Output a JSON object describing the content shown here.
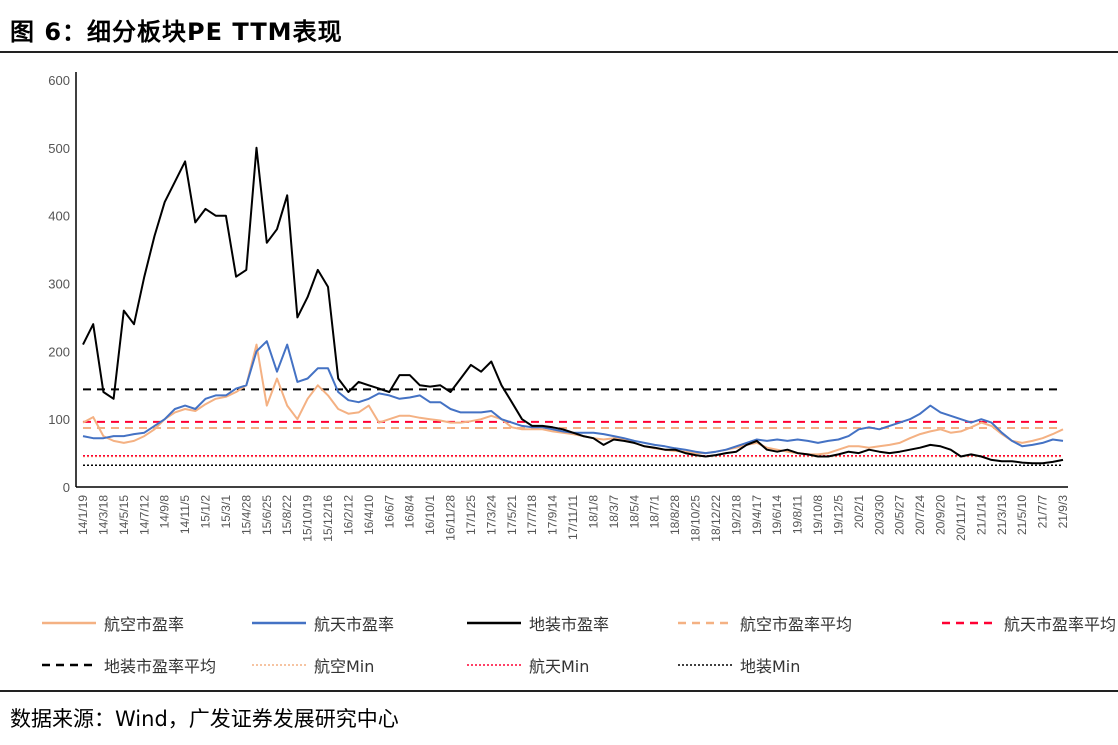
{
  "title": "图 6：细分板块PE TTM表现",
  "source": "数据来源：Wind，广发证券发展研究中心",
  "chart_data": {
    "type": "line",
    "title": "",
    "xlabel": "",
    "ylabel": "",
    "ylim": [
      0,
      600
    ],
    "yticks": [
      "0",
      "100",
      "200",
      "300",
      "400",
      "500",
      "600"
    ],
    "grid": false,
    "legend_position": "bottom",
    "xtick_labels": [
      "14/1/19",
      "14/3/18",
      "14/5/15",
      "14/7/12",
      "14/9/8",
      "14/11/5",
      "15/1/2",
      "15/3/1",
      "15/4/28",
      "15/6/25",
      "15/8/22",
      "15/10/19",
      "15/12/16",
      "16/2/12",
      "16/4/10",
      "16/6/7",
      "16/8/4",
      "16/10/1",
      "16/11/28",
      "17/1/25",
      "17/3/24",
      "17/5/21",
      "17/7/18",
      "17/9/14",
      "17/11/11",
      "18/1/8",
      "18/3/7",
      "18/5/4",
      "18/7/1",
      "18/8/28",
      "18/10/25",
      "18/12/22",
      "19/2/18",
      "19/4/17",
      "19/6/14",
      "19/8/11",
      "19/10/8",
      "19/12/5",
      "20/2/1",
      "20/3/30",
      "20/5/27",
      "20/7/24",
      "20/9/20",
      "20/11/17",
      "21/1/14",
      "21/3/13",
      "21/5/10",
      "21/7/7",
      "21/9/3"
    ],
    "x": [
      "14/1/19",
      "14/2/17",
      "14/3/18",
      "14/4/16",
      "14/5/15",
      "14/6/13",
      "14/7/12",
      "14/8/10",
      "14/9/8",
      "14/10/7",
      "14/11/5",
      "14/12/4",
      "15/1/2",
      "15/1/31",
      "15/3/1",
      "15/3/30",
      "15/4/28",
      "15/5/27",
      "15/6/25",
      "15/7/24",
      "15/8/22",
      "15/9/20",
      "15/10/19",
      "15/11/17",
      "15/12/16",
      "16/1/14",
      "16/2/12",
      "16/3/12",
      "16/4/10",
      "16/5/9",
      "16/6/7",
      "16/7/6",
      "16/8/4",
      "16/9/2",
      "16/10/1",
      "16/10/30",
      "16/11/28",
      "16/12/27",
      "17/1/25",
      "17/2/23",
      "17/3/24",
      "17/4/22",
      "17/5/21",
      "17/6/19",
      "17/7/18",
      "17/8/16",
      "17/9/14",
      "17/10/13",
      "17/11/11",
      "17/12/10",
      "18/1/8",
      "18/2/6",
      "18/3/7",
      "18/4/5",
      "18/5/4",
      "18/6/2",
      "18/7/1",
      "18/7/30",
      "18/8/28",
      "18/9/26",
      "18/10/25",
      "18/11/23",
      "18/12/22",
      "19/1/20",
      "19/2/18",
      "19/3/19",
      "19/4/17",
      "19/5/16",
      "19/6/14",
      "19/7/13",
      "19/8/11",
      "19/9/9",
      "19/10/8",
      "19/11/6",
      "19/12/5",
      "20/1/3",
      "20/2/1",
      "20/3/1",
      "20/3/30",
      "20/4/28",
      "20/5/27",
      "20/6/25",
      "20/7/24",
      "20/8/22",
      "20/9/20",
      "20/10/19",
      "20/11/17",
      "20/12/16",
      "21/1/14",
      "21/2/12",
      "21/3/13",
      "21/4/11",
      "21/5/10",
      "21/6/8",
      "21/7/7",
      "21/8/5",
      "21/9/3"
    ],
    "series": [
      {
        "name": "航空市盈率",
        "color": "#F4B183",
        "style": "solid",
        "values": [
          95,
          103,
          75,
          68,
          65,
          68,
          75,
          85,
          100,
          110,
          115,
          112,
          122,
          130,
          133,
          140,
          150,
          210,
          120,
          160,
          120,
          100,
          130,
          150,
          135,
          115,
          108,
          110,
          120,
          95,
          100,
          105,
          105,
          102,
          100,
          98,
          95,
          95,
          97,
          100,
          105,
          100,
          88,
          85,
          85,
          85,
          82,
          80,
          78,
          75,
          72,
          70,
          72,
          70,
          65,
          60,
          57,
          55,
          53,
          52,
          50,
          50,
          52,
          55,
          58,
          62,
          65,
          58,
          55,
          52,
          50,
          48,
          48,
          50,
          55,
          60,
          60,
          58,
          60,
          62,
          65,
          72,
          78,
          82,
          85,
          80,
          82,
          88,
          95,
          90,
          78,
          68,
          65,
          68,
          72,
          78,
          85
        ]
      },
      {
        "name": "航天市盈率",
        "color": "#4472C4",
        "style": "solid",
        "values": [
          75,
          72,
          72,
          75,
          75,
          78,
          80,
          90,
          100,
          115,
          120,
          115,
          130,
          135,
          135,
          145,
          150,
          200,
          215,
          170,
          210,
          155,
          160,
          175,
          175,
          140,
          128,
          125,
          130,
          138,
          135,
          130,
          132,
          135,
          125,
          125,
          115,
          110,
          110,
          110,
          112,
          100,
          95,
          90,
          88,
          88,
          85,
          82,
          80,
          80,
          80,
          78,
          75,
          72,
          68,
          65,
          62,
          60,
          57,
          55,
          52,
          50,
          52,
          55,
          60,
          65,
          70,
          68,
          70,
          68,
          70,
          68,
          65,
          68,
          70,
          75,
          85,
          88,
          85,
          90,
          95,
          100,
          108,
          120,
          110,
          105,
          100,
          95,
          100,
          95,
          80,
          68,
          60,
          62,
          65,
          70,
          68
        ]
      },
      {
        "name": "地装市盈率",
        "color": "#000000",
        "style": "solid",
        "values": [
          210,
          240,
          140,
          130,
          260,
          240,
          310,
          370,
          420,
          450,
          480,
          390,
          410,
          400,
          400,
          310,
          320,
          500,
          360,
          380,
          430,
          250,
          280,
          320,
          295,
          160,
          140,
          155,
          150,
          145,
          140,
          165,
          165,
          150,
          148,
          150,
          140,
          160,
          180,
          170,
          185,
          150,
          125,
          100,
          90,
          90,
          88,
          85,
          80,
          75,
          72,
          62,
          70,
          68,
          65,
          60,
          58,
          55,
          55,
          50,
          47,
          45,
          47,
          50,
          52,
          62,
          68,
          55,
          52,
          55,
          50,
          48,
          45,
          45,
          48,
          52,
          50,
          55,
          52,
          50,
          52,
          55,
          58,
          62,
          60,
          55,
          45,
          48,
          45,
          40,
          38,
          38,
          36,
          35,
          35,
          37,
          40
        ]
      },
      {
        "name": "航空市盈率平均",
        "color": "#F4B183",
        "style": "dashed",
        "value": 87
      },
      {
        "name": "航天市盈率平均",
        "color": "#FF0033",
        "style": "dashed",
        "value": 96
      },
      {
        "name": "地装市盈率平均",
        "color": "#000000",
        "style": "dashed",
        "value": 144
      },
      {
        "name": "航空Min",
        "color": "#F4B183",
        "style": "dotted",
        "value": 45
      },
      {
        "name": "航天Min",
        "color": "#FF0033",
        "style": "dotted",
        "value": 46
      },
      {
        "name": "地装Min",
        "color": "#000000",
        "style": "dotted",
        "value": 32
      }
    ]
  }
}
